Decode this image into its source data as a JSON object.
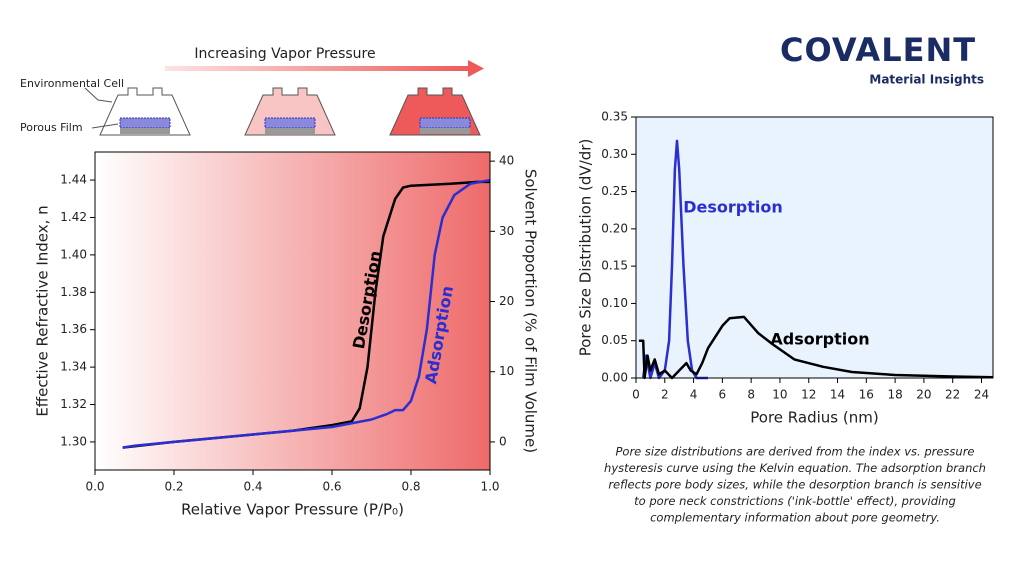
{
  "diagram": {
    "title": "Increasing Vapor Pressure",
    "cell_label": "Environmental Cell",
    "film_label": "Porous Film"
  },
  "logo": {
    "name": "COVALENT",
    "tagline": "Material Insights"
  },
  "caption": [
    "Pore size distributions are derived from the index vs. pressure",
    "hysteresis curve using the Kelvin equation. The adsorption branch",
    "reflects pore body sizes, while the desorption branch is sensitive",
    "to pore neck constrictions ('ink-bottle' effect), providing",
    "complementary information about pore geometry."
  ],
  "chart_data": [
    {
      "type": "line",
      "x_label": "Relative Vapor Pressure (P/P₀)",
      "y_label": "Effective Refractive Index, n",
      "y2_label": "Solvent Proportion (% of Film Volume)",
      "xlim": [
        0,
        1
      ],
      "ylim": [
        1.285,
        1.455
      ],
      "y2lim": [
        -4,
        41.3
      ],
      "xticks": [
        {
          "value": 0,
          "label": "0.0"
        },
        0.2,
        0.4,
        0.6,
        0.8,
        {
          "value": 1,
          "label": "1.0"
        }
      ],
      "yticks": [
        {
          "value": 1.3,
          "label": "1.30"
        },
        1.32,
        1.34,
        1.36,
        1.38,
        {
          "value": 1.4,
          "label": "1.40"
        },
        1.42,
        1.44
      ],
      "y2ticks": [
        0,
        10,
        20,
        30,
        40
      ],
      "background_gradient": [
        "#ffffff",
        "#ee6a6a"
      ],
      "series": [
        {
          "name": "Desorption",
          "color": "#000000",
          "x": [
            0.07,
            0.2,
            0.4,
            0.5,
            0.6,
            0.65,
            0.67,
            0.69,
            0.71,
            0.73,
            0.76,
            0.78,
            0.8,
            0.9,
            0.97,
            1.0
          ],
          "values": [
            1.297,
            1.3,
            1.304,
            1.306,
            1.309,
            1.311,
            1.318,
            1.34,
            1.38,
            1.41,
            1.43,
            1.436,
            1.437,
            1.438,
            1.439,
            1.439
          ]
        },
        {
          "name": "Adsorption",
          "color": "#2b2fd0",
          "x": [
            0.07,
            0.1,
            0.2,
            0.3,
            0.4,
            0.5,
            0.6,
            0.7,
            0.74,
            0.76,
            0.78,
            0.8,
            0.82,
            0.84,
            0.85,
            0.86,
            0.88,
            0.91,
            0.95,
            1.0
          ],
          "values": [
            1.297,
            1.298,
            1.3,
            1.302,
            1.304,
            1.306,
            1.308,
            1.312,
            1.315,
            1.317,
            1.317,
            1.322,
            1.335,
            1.36,
            1.38,
            1.4,
            1.42,
            1.432,
            1.438,
            1.44
          ]
        }
      ]
    },
    {
      "type": "line",
      "x_label": "Pore Radius (nm)",
      "y_label": "Pore Size Distribution (dV/dr)",
      "xlim": [
        0,
        24.8
      ],
      "ylim": [
        0,
        0.35
      ],
      "xticks": [
        0,
        2,
        4,
        6,
        8,
        10,
        12,
        14,
        16,
        18,
        20,
        22,
        24
      ],
      "yticks": [
        {
          "value": 0,
          "label": "0.00"
        },
        0.05,
        {
          "value": 0.1,
          "label": "0.10"
        },
        0.15,
        {
          "value": 0.2,
          "label": "0.20"
        },
        0.25,
        {
          "value": 0.3,
          "label": "0.30"
        },
        0.35
      ],
      "background": "#e9f3fd",
      "series": [
        {
          "name": "Desorption",
          "color": "#2b2fd0",
          "x": [
            0.5,
            0.7,
            1,
            1.3,
            1.6,
            2,
            2.3,
            2.5,
            2.7,
            2.85,
            3,
            3.3,
            3.6,
            3.9,
            4.2,
            5
          ],
          "values": [
            0,
            0.03,
            0,
            0.02,
            0,
            0.01,
            0.05,
            0.15,
            0.28,
            0.318,
            0.28,
            0.15,
            0.05,
            0.01,
            0,
            0
          ]
        },
        {
          "name": "Adsorption",
          "color": "#000000",
          "x": [
            0.2,
            0.5,
            0.6,
            0.8,
            1,
            1.3,
            1.6,
            2,
            2.5,
            3,
            3.5,
            3.8,
            4.2,
            4.6,
            5,
            6,
            6.5,
            7.5,
            8.5,
            9.5,
            11,
            13,
            15,
            18,
            22,
            24.8
          ],
          "values": [
            0.05,
            0.05,
            0,
            0.03,
            0.01,
            0.025,
            0.005,
            0.01,
            0,
            0.01,
            0.02,
            0.01,
            0.005,
            0.02,
            0.04,
            0.07,
            0.08,
            0.082,
            0.06,
            0.045,
            0.025,
            0.015,
            0.008,
            0.004,
            0.002,
            0.001
          ]
        }
      ]
    }
  ]
}
